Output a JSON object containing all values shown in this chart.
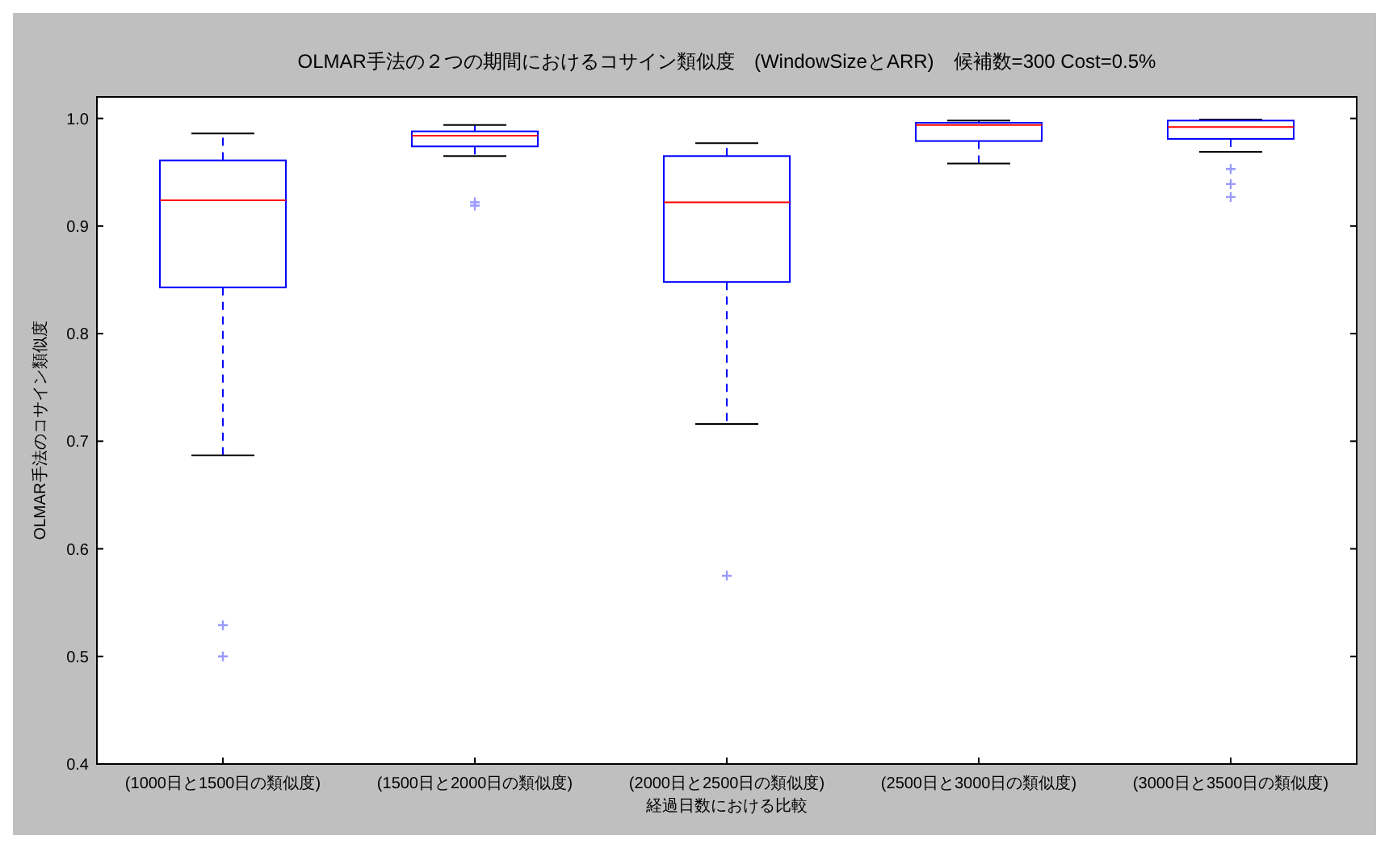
{
  "chart_data": {
    "type": "box",
    "title": "OLMAR手法の２つの期間におけるコサイン類似度　(WindowSizeとARR)　候補数=300 Cost=0.5%",
    "xlabel": "経過日数における比較",
    "ylabel": "OLMAR手法のコサイン類似度",
    "categories": [
      "(1000日と1500日の類似度)",
      "(1500日と2000日の類似度)",
      "(2000日と2500日の類似度)",
      "(2500日と3000日の類似度)",
      "(3000日と3500日の類似度)"
    ],
    "color": "#0000ff",
    "boxes": [
      {
        "low": 0.687,
        "q1": 0.843,
        "median": 0.924,
        "q3": 0.961,
        "high": 0.986,
        "outliers": [
          0.529,
          0.5
        ]
      },
      {
        "low": 0.965,
        "q1": 0.974,
        "median": 0.984,
        "q3": 0.988,
        "high": 0.994,
        "outliers": [
          0.922,
          0.919
        ]
      },
      {
        "low": 0.716,
        "q1": 0.848,
        "median": 0.922,
        "q3": 0.965,
        "high": 0.977,
        "outliers": [
          0.575
        ]
      },
      {
        "low": 0.958,
        "q1": 0.979,
        "median": 0.994,
        "q3": 0.996,
        "high": 0.998
      },
      {
        "low": 0.969,
        "q1": 0.981,
        "median": 0.992,
        "q3": 0.998,
        "high": 0.999,
        "outliers": [
          0.953,
          0.939,
          0.927
        ]
      }
    ],
    "ylim": [
      0.4,
      1.02
    ],
    "yticks": [
      0.4,
      0.5,
      0.6,
      0.7,
      0.8,
      0.9,
      {
        "value": 1,
        "label": "1.0"
      }
    ],
    "grid": false,
    "marker": "cross"
  }
}
